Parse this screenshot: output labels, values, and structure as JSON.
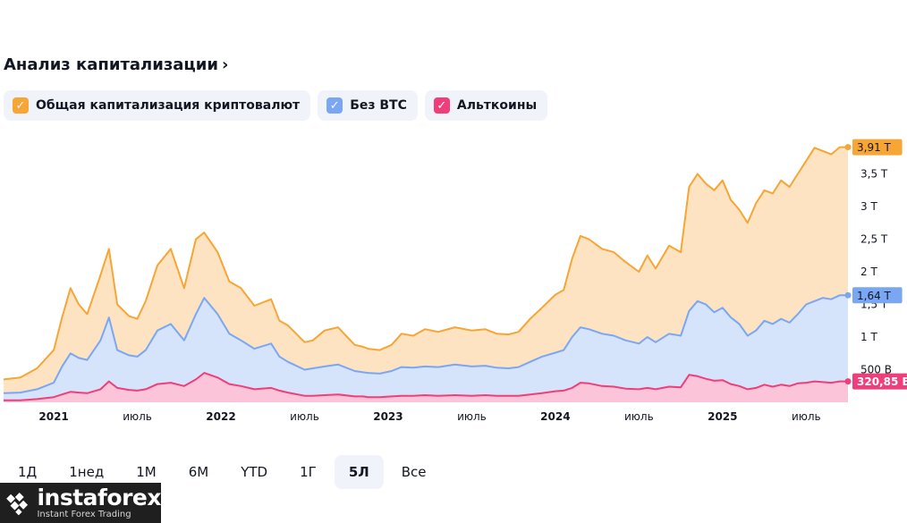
{
  "header": {
    "title": "Анализ капитализации",
    "chevron": "›"
  },
  "legend": [
    {
      "label": "Общая капитализация криптовалют",
      "color": "#f7a535",
      "icon": "check-icon"
    },
    {
      "label": "Без BTC",
      "color": "#7aa7f4",
      "icon": "check-icon"
    },
    {
      "label": "Альткоины",
      "color": "#f03e7a",
      "icon": "check-icon"
    }
  ],
  "ranges": [
    {
      "label": "1Д",
      "active": false
    },
    {
      "label": "1нед",
      "active": false
    },
    {
      "label": "1М",
      "active": false
    },
    {
      "label": "6М",
      "active": false
    },
    {
      "label": "YTD",
      "active": false
    },
    {
      "label": "1Г",
      "active": false
    },
    {
      "label": "5Л",
      "active": true
    },
    {
      "label": "Все",
      "active": false
    }
  ],
  "logo": {
    "brand": "instaforex",
    "tagline": "Instant Forex Trading"
  },
  "chart_data": {
    "type": "area",
    "title": "Анализ капитализации",
    "x_ticks": [
      "2021",
      "июль",
      "2022",
      "июль",
      "2023",
      "июль",
      "2024",
      "июль",
      "2025",
      "июль"
    ],
    "x_tick_pos": [
      2021.0,
      2021.5,
      2022.0,
      2022.5,
      2023.0,
      2023.5,
      2024.0,
      2024.5,
      2025.0,
      2025.5
    ],
    "xlim": [
      2020.7,
      2025.75
    ],
    "y_ticks": [
      "500 B",
      "1 T",
      "1,5 T",
      "2 T",
      "2,5 T",
      "3 T",
      "3,5 T"
    ],
    "y_tick_vals": [
      0.5,
      1.0,
      1.5,
      2.0,
      2.5,
      3.0,
      3.5
    ],
    "ylim": [
      0,
      4.0
    ],
    "unit": "T",
    "grid": false,
    "last_labels": [
      {
        "series": 0,
        "text": "3,91 T"
      },
      {
        "series": 1,
        "text": "1,64 T"
      },
      {
        "series": 2,
        "text": "320,85 B"
      }
    ],
    "series": [
      {
        "name": "Общая капитализация криптовалют",
        "color": "#f7a535",
        "fill": "#fde3c1",
        "x": [
          2020.7,
          2020.8,
          2020.9,
          2021.0,
          2021.05,
          2021.1,
          2021.15,
          2021.2,
          2021.28,
          2021.33,
          2021.38,
          2021.45,
          2021.5,
          2021.55,
          2021.62,
          2021.7,
          2021.78,
          2021.85,
          2021.9,
          2021.98,
          2022.05,
          2022.12,
          2022.2,
          2022.3,
          2022.35,
          2022.4,
          2022.5,
          2022.55,
          2022.62,
          2022.7,
          2022.8,
          2022.85,
          2022.88,
          2022.95,
          2023.02,
          2023.08,
          2023.15,
          2023.22,
          2023.3,
          2023.4,
          2023.5,
          2023.58,
          2023.65,
          2023.72,
          2023.78,
          2023.85,
          2023.92,
          2024.0,
          2024.05,
          2024.1,
          2024.15,
          2024.2,
          2024.28,
          2024.35,
          2024.42,
          2024.5,
          2024.55,
          2024.6,
          2024.68,
          2024.75,
          2024.8,
          2024.85,
          2024.9,
          2024.95,
          2025.0,
          2025.05,
          2025.1,
          2025.15,
          2025.2,
          2025.25,
          2025.3,
          2025.35,
          2025.4,
          2025.45,
          2025.5,
          2025.55,
          2025.6,
          2025.65,
          2025.7,
          2025.75
        ],
        "values": [
          0.35,
          0.38,
          0.52,
          0.8,
          1.3,
          1.75,
          1.5,
          1.35,
          1.95,
          2.35,
          1.5,
          1.32,
          1.28,
          1.55,
          2.1,
          2.35,
          1.75,
          2.5,
          2.6,
          2.3,
          1.85,
          1.75,
          1.48,
          1.58,
          1.25,
          1.18,
          0.92,
          0.95,
          1.1,
          1.15,
          0.88,
          0.85,
          0.82,
          0.8,
          0.88,
          1.05,
          1.02,
          1.12,
          1.08,
          1.15,
          1.1,
          1.12,
          1.05,
          1.04,
          1.08,
          1.28,
          1.45,
          1.65,
          1.72,
          2.2,
          2.55,
          2.5,
          2.35,
          2.3,
          2.15,
          2.0,
          2.25,
          2.05,
          2.4,
          2.3,
          3.3,
          3.5,
          3.35,
          3.25,
          3.4,
          3.1,
          2.95,
          2.75,
          3.05,
          3.25,
          3.2,
          3.4,
          3.3,
          3.5,
          3.7,
          3.9,
          3.85,
          3.8,
          3.91,
          3.91
        ]
      },
      {
        "name": "Без BTC",
        "color": "#7aa7f4",
        "fill": "#d5e3fb",
        "x": [
          2020.7,
          2020.8,
          2020.9,
          2021.0,
          2021.05,
          2021.1,
          2021.15,
          2021.2,
          2021.28,
          2021.33,
          2021.38,
          2021.45,
          2021.5,
          2021.55,
          2021.62,
          2021.7,
          2021.78,
          2021.85,
          2021.9,
          2021.98,
          2022.05,
          2022.12,
          2022.2,
          2022.3,
          2022.35,
          2022.4,
          2022.5,
          2022.55,
          2022.62,
          2022.7,
          2022.8,
          2022.85,
          2022.88,
          2022.95,
          2023.02,
          2023.08,
          2023.15,
          2023.22,
          2023.3,
          2023.4,
          2023.5,
          2023.58,
          2023.65,
          2023.72,
          2023.78,
          2023.85,
          2023.92,
          2024.0,
          2024.05,
          2024.1,
          2024.15,
          2024.2,
          2024.28,
          2024.35,
          2024.42,
          2024.5,
          2024.55,
          2024.6,
          2024.68,
          2024.75,
          2024.8,
          2024.85,
          2024.9,
          2024.95,
          2025.0,
          2025.05,
          2025.1,
          2025.15,
          2025.2,
          2025.25,
          2025.3,
          2025.35,
          2025.4,
          2025.45,
          2025.5,
          2025.55,
          2025.6,
          2025.65,
          2025.7,
          2025.75
        ],
        "values": [
          0.14,
          0.15,
          0.2,
          0.3,
          0.55,
          0.75,
          0.68,
          0.65,
          0.95,
          1.3,
          0.8,
          0.72,
          0.7,
          0.8,
          1.1,
          1.2,
          0.95,
          1.35,
          1.6,
          1.35,
          1.05,
          0.95,
          0.82,
          0.9,
          0.7,
          0.62,
          0.5,
          0.52,
          0.55,
          0.58,
          0.48,
          0.46,
          0.45,
          0.44,
          0.48,
          0.54,
          0.53,
          0.55,
          0.54,
          0.58,
          0.55,
          0.56,
          0.53,
          0.52,
          0.54,
          0.62,
          0.7,
          0.76,
          0.8,
          1.0,
          1.15,
          1.12,
          1.05,
          1.02,
          0.95,
          0.9,
          1.0,
          0.92,
          1.05,
          1.02,
          1.4,
          1.55,
          1.5,
          1.38,
          1.45,
          1.3,
          1.2,
          1.02,
          1.1,
          1.25,
          1.2,
          1.28,
          1.22,
          1.35,
          1.5,
          1.55,
          1.6,
          1.58,
          1.64,
          1.64
        ]
      },
      {
        "name": "Альткоины",
        "color": "#f03e7a",
        "fill": "#fbc4d9",
        "x": [
          2020.7,
          2020.8,
          2020.9,
          2021.0,
          2021.05,
          2021.1,
          2021.15,
          2021.2,
          2021.28,
          2021.33,
          2021.38,
          2021.45,
          2021.5,
          2021.55,
          2021.62,
          2021.7,
          2021.78,
          2021.85,
          2021.9,
          2021.98,
          2022.05,
          2022.12,
          2022.2,
          2022.3,
          2022.35,
          2022.4,
          2022.5,
          2022.55,
          2022.62,
          2022.7,
          2022.8,
          2022.85,
          2022.88,
          2022.95,
          2023.02,
          2023.08,
          2023.15,
          2023.22,
          2023.3,
          2023.4,
          2023.5,
          2023.58,
          2023.65,
          2023.72,
          2023.78,
          2023.85,
          2023.92,
          2024.0,
          2024.05,
          2024.1,
          2024.15,
          2024.2,
          2024.28,
          2024.35,
          2024.42,
          2024.5,
          2024.55,
          2024.6,
          2024.68,
          2024.75,
          2024.8,
          2024.85,
          2024.9,
          2024.95,
          2025.0,
          2025.05,
          2025.1,
          2025.15,
          2025.2,
          2025.25,
          2025.3,
          2025.35,
          2025.4,
          2025.45,
          2025.5,
          2025.55,
          2025.6,
          2025.65,
          2025.7,
          2025.75
        ],
        "values": [
          0.03,
          0.03,
          0.05,
          0.08,
          0.12,
          0.16,
          0.15,
          0.14,
          0.2,
          0.32,
          0.22,
          0.19,
          0.18,
          0.2,
          0.28,
          0.3,
          0.25,
          0.35,
          0.45,
          0.38,
          0.28,
          0.25,
          0.2,
          0.22,
          0.18,
          0.15,
          0.1,
          0.1,
          0.11,
          0.12,
          0.09,
          0.09,
          0.08,
          0.08,
          0.09,
          0.1,
          0.1,
          0.11,
          0.1,
          0.11,
          0.1,
          0.11,
          0.1,
          0.1,
          0.1,
          0.12,
          0.14,
          0.17,
          0.18,
          0.22,
          0.3,
          0.29,
          0.25,
          0.24,
          0.21,
          0.2,
          0.22,
          0.2,
          0.24,
          0.23,
          0.42,
          0.4,
          0.36,
          0.33,
          0.34,
          0.28,
          0.25,
          0.2,
          0.22,
          0.27,
          0.24,
          0.27,
          0.25,
          0.29,
          0.3,
          0.32,
          0.31,
          0.3,
          0.32,
          0.32
        ]
      }
    ]
  }
}
